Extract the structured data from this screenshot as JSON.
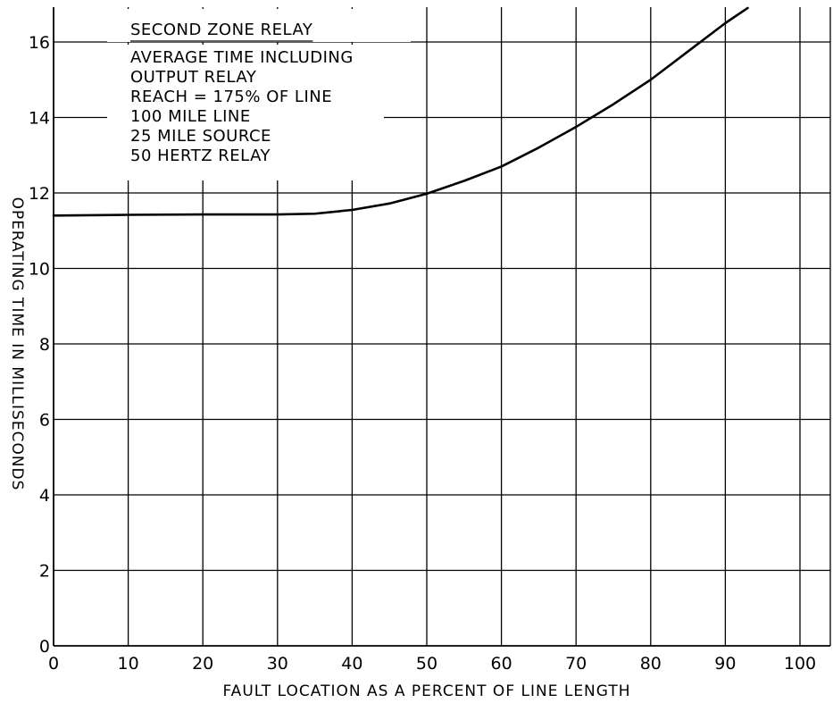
{
  "chart_data": {
    "type": "line",
    "xlabel": "FAULT LOCATION AS A PERCENT OF LINE LENGTH",
    "ylabel": "OPERATING TIME IN MILLISECONDS",
    "xlim": [
      0,
      100
    ],
    "ylim": [
      0,
      16.9
    ],
    "x_ticks": [
      "0",
      "10",
      "20",
      "30",
      "40",
      "50",
      "60",
      "70",
      "80",
      "90",
      "100"
    ],
    "y_ticks": [
      "0",
      "2",
      "4",
      "6",
      "8",
      "10",
      "12",
      "14",
      "16"
    ],
    "grid": true,
    "annotation": {
      "title": "SECOND ZONE RELAY",
      "lines": [
        "AVERAGE TIME INCLUDING",
        "OUTPUT RELAY",
        "REACH = 175% OF LINE",
        "100 MILE LINE",
        "25 MILE SOURCE",
        "50 HERTZ RELAY"
      ]
    },
    "series": [
      {
        "x": [
          0,
          10,
          20,
          30,
          35,
          40,
          45,
          50,
          55,
          60,
          65,
          70,
          75,
          80,
          85,
          90,
          93
        ],
        "y": [
          11.4,
          11.42,
          11.43,
          11.43,
          11.45,
          11.55,
          11.72,
          11.98,
          12.32,
          12.7,
          13.2,
          13.75,
          14.35,
          15.0,
          15.75,
          16.5,
          16.9
        ]
      }
    ]
  }
}
